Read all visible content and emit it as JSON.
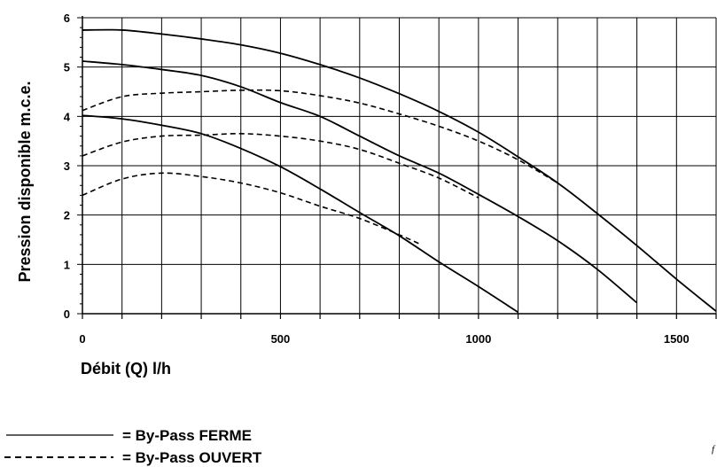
{
  "chart_data": {
    "type": "line",
    "xlabel": "Débit (Q) l/h",
    "ylabel": "Pression disponible m.c.e.",
    "xlim": [
      0,
      1600
    ],
    "ylim": [
      0,
      6
    ],
    "xticks": [
      "0",
      "500",
      "1000",
      "1500"
    ],
    "yticks": [
      "0",
      "1",
      "2",
      "3",
      "4",
      "5",
      "6"
    ],
    "grid": true,
    "legend": [
      {
        "label": "= By-Pass FERME",
        "style": "solid"
      },
      {
        "label": "= By-Pass OUVERT",
        "style": "dashed"
      }
    ],
    "series": [
      {
        "style": "solid",
        "points": [
          [
            0,
            5.75
          ],
          [
            100,
            5.75
          ],
          [
            200,
            5.67
          ],
          [
            300,
            5.57
          ],
          [
            400,
            5.45
          ],
          [
            500,
            5.28
          ],
          [
            600,
            5.05
          ],
          [
            700,
            4.78
          ],
          [
            800,
            4.46
          ],
          [
            900,
            4.1
          ],
          [
            1000,
            3.68
          ],
          [
            1100,
            3.18
          ],
          [
            1200,
            2.65
          ],
          [
            1300,
            2.03
          ],
          [
            1400,
            1.38
          ],
          [
            1500,
            0.7
          ],
          [
            1600,
            0.05
          ]
        ]
      },
      {
        "style": "solid",
        "points": [
          [
            0,
            5.12
          ],
          [
            100,
            5.05
          ],
          [
            200,
            4.95
          ],
          [
            300,
            4.83
          ],
          [
            400,
            4.6
          ],
          [
            500,
            4.28
          ],
          [
            600,
            4.0
          ],
          [
            700,
            3.6
          ],
          [
            800,
            3.2
          ],
          [
            900,
            2.85
          ],
          [
            1000,
            2.42
          ],
          [
            1100,
            1.97
          ],
          [
            1200,
            1.48
          ],
          [
            1300,
            0.9
          ],
          [
            1400,
            0.22
          ]
        ]
      },
      {
        "style": "solid",
        "points": [
          [
            0,
            4.02
          ],
          [
            100,
            3.95
          ],
          [
            200,
            3.82
          ],
          [
            300,
            3.65
          ],
          [
            400,
            3.35
          ],
          [
            500,
            2.98
          ],
          [
            600,
            2.53
          ],
          [
            700,
            2.05
          ],
          [
            800,
            1.58
          ],
          [
            900,
            1.05
          ],
          [
            1000,
            0.55
          ],
          [
            1100,
            0.03
          ]
        ]
      },
      {
        "style": "dashed",
        "points": [
          [
            0,
            4.12
          ],
          [
            100,
            4.4
          ],
          [
            200,
            4.47
          ],
          [
            300,
            4.5
          ],
          [
            400,
            4.53
          ],
          [
            500,
            4.52
          ],
          [
            600,
            4.42
          ],
          [
            700,
            4.27
          ],
          [
            800,
            4.05
          ],
          [
            900,
            3.8
          ],
          [
            1000,
            3.5
          ],
          [
            1100,
            3.12
          ],
          [
            1200,
            2.65
          ]
        ]
      },
      {
        "style": "dashed",
        "points": [
          [
            0,
            3.2
          ],
          [
            100,
            3.48
          ],
          [
            200,
            3.6
          ],
          [
            300,
            3.62
          ],
          [
            400,
            3.65
          ],
          [
            500,
            3.6
          ],
          [
            600,
            3.5
          ],
          [
            700,
            3.33
          ],
          [
            800,
            3.05
          ],
          [
            900,
            2.75
          ],
          [
            1000,
            2.35
          ]
        ]
      },
      {
        "style": "dashed",
        "points": [
          [
            0,
            2.4
          ],
          [
            100,
            2.73
          ],
          [
            200,
            2.85
          ],
          [
            300,
            2.78
          ],
          [
            400,
            2.65
          ],
          [
            500,
            2.45
          ],
          [
            600,
            2.18
          ],
          [
            700,
            1.93
          ],
          [
            800,
            1.6
          ],
          [
            850,
            1.42
          ]
        ]
      }
    ]
  },
  "corner_mark": "f"
}
